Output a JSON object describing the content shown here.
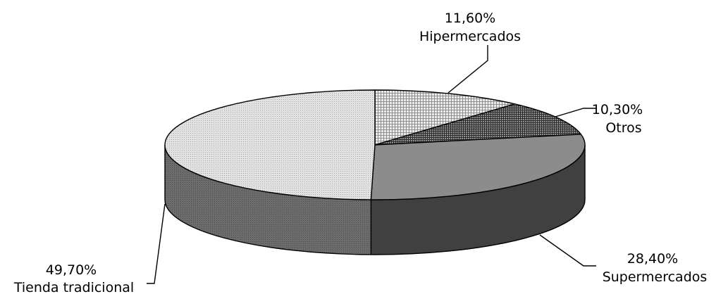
{
  "chart_data": {
    "type": "pie",
    "style": "3d",
    "title": "",
    "slices": [
      {
        "label": "Hipermercados",
        "value": 11.6,
        "value_label": "11,60%",
        "pattern": "fine-crosshatch"
      },
      {
        "label": "Otros",
        "value": 10.3,
        "value_label": "10,30%",
        "pattern": "dark-crosshatch"
      },
      {
        "label": "Supermercados",
        "value": 28.4,
        "value_label": "28,40%",
        "pattern": "solid-gray"
      },
      {
        "label": "Tienda tradicional",
        "value": 49.7,
        "value_label": "49,70%",
        "pattern": "light-dotted"
      }
    ],
    "legend": "none",
    "labels": "outside-with-leader-lines"
  },
  "colors": {
    "outline": "#000000",
    "hiper_top": "#ebebeb",
    "hiper_grid": "#7a7a7a",
    "otros_top": "#8f8f8f",
    "otros_grid": "#2b2b2b",
    "super_top": "#8c8c8c",
    "super_side": "#404040",
    "tienda_top": "#e2e2e2",
    "tienda_dots": "#a8a8a8",
    "tienda_side": "#6c6c6c",
    "tienda_side_dots": "#4a4a4a"
  }
}
